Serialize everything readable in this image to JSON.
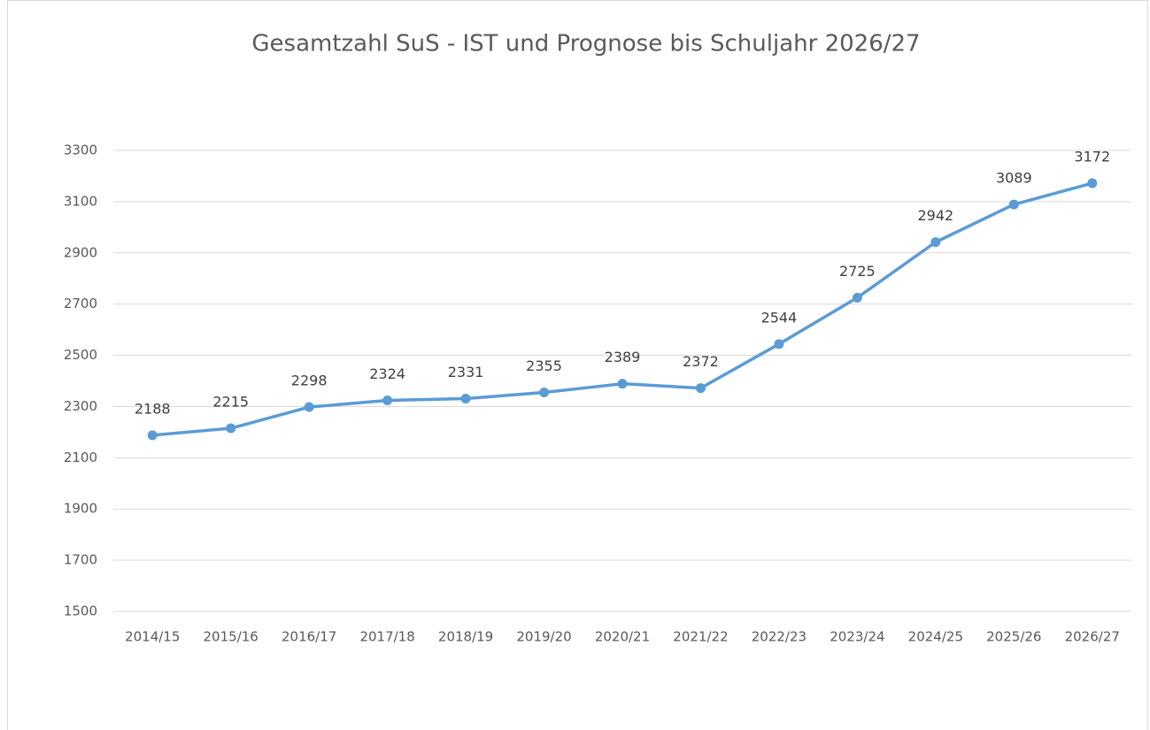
{
  "chart_data": {
    "type": "line",
    "title": "Gesamtzahl SuS - IST und Prognose bis Schuljahr 2026/27",
    "categories": [
      "2014/15",
      "2015/16",
      "2016/17",
      "2017/18",
      "2018/19",
      "2019/20",
      "2020/21",
      "2021/22",
      "2022/23",
      "2023/24",
      "2024/25",
      "2025/26",
      "2026/27"
    ],
    "series": [
      {
        "name": "Gesamtzahl SuS",
        "color": "#5b9bd5",
        "values": [
          2188,
          2215,
          2298,
          2324,
          2331,
          2355,
          2389,
          2372,
          2544,
          2725,
          2942,
          3089,
          3172
        ]
      }
    ],
    "ylim": [
      1500,
      3300
    ],
    "yticks": [
      1500,
      1700,
      1900,
      2100,
      2300,
      2500,
      2700,
      2900,
      3100,
      3300
    ],
    "grid": true,
    "data_labels": true
  }
}
